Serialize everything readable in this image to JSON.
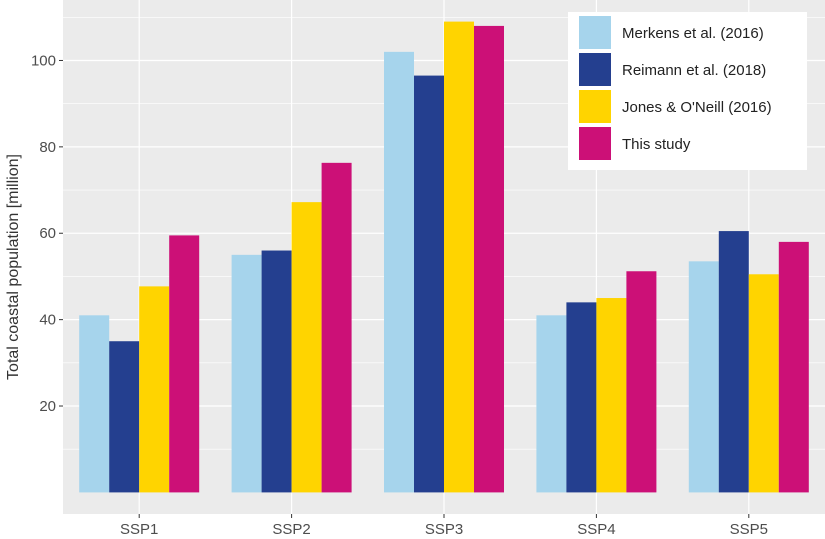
{
  "chart_data": {
    "type": "bar",
    "title": "",
    "xlabel": "",
    "ylabel": "Total coastal population [million]",
    "categories": [
      "SSP1",
      "SSP2",
      "SSP3",
      "SSP4",
      "SSP5"
    ],
    "yticks": [
      20,
      40,
      60,
      80,
      100
    ],
    "ylim": [
      -5,
      114
    ],
    "grid": true,
    "legend_position": "top-right",
    "series": [
      {
        "name": "Merkens et al. (2016)",
        "color": "#a6d4ec",
        "values": [
          41,
          55,
          102,
          41,
          53.5
        ]
      },
      {
        "name": "Reimann et al. (2018)",
        "color": "#243f8f",
        "values": [
          35,
          56,
          96.5,
          44,
          60.5
        ]
      },
      {
        "name": "Jones & O'Neill (2016)",
        "color": "#ffd400",
        "values": [
          47.7,
          67.2,
          109,
          45,
          50.5
        ]
      },
      {
        "name": "This study",
        "color": "#cc1077",
        "values": [
          59.5,
          76.3,
          108,
          51.2,
          58
        ]
      }
    ]
  }
}
